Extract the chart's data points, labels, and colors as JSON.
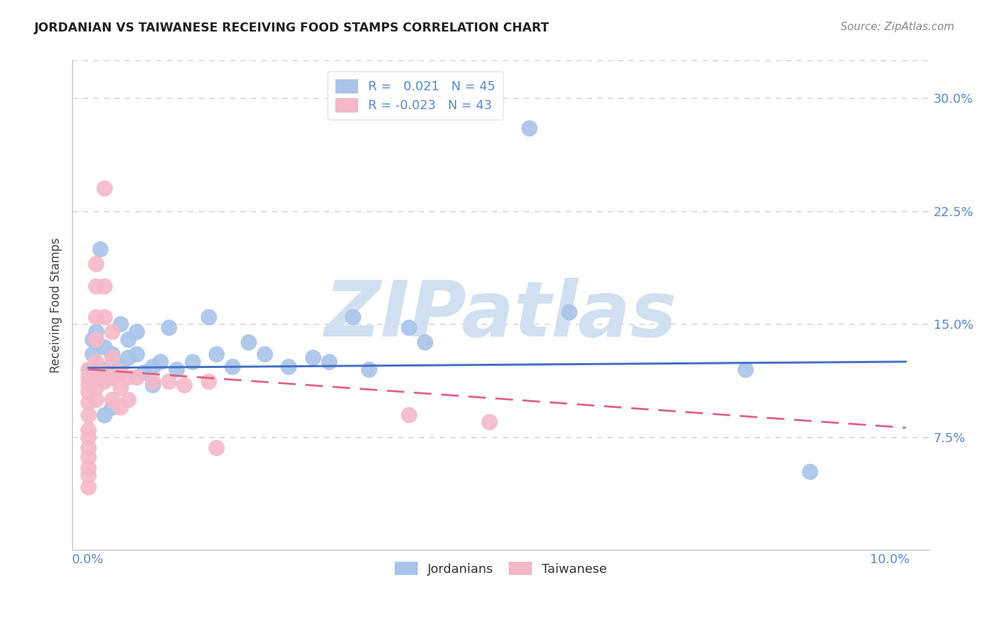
{
  "title": "JORDANIAN VS TAIWANESE RECEIVING FOOD STAMPS CORRELATION CHART",
  "source": "Source: ZipAtlas.com",
  "xlabel_blue": "Jordanians",
  "xlabel_pink": "Taiwanese",
  "ylabel": "Receiving Food Stamps",
  "xlim": [
    -0.002,
    0.105
  ],
  "ylim": [
    0.0,
    0.325
  ],
  "r_jordanian": 0.021,
  "n_jordanian": 45,
  "r_taiwanese": -0.023,
  "n_taiwanese": 43,
  "blue_color": "#a8c4e8",
  "pink_color": "#f5b8c8",
  "line_blue": "#4472c4",
  "line_pink": "#e06080",
  "watermark_color": "#d0e0f0",
  "title_color": "#222222",
  "axis_color": "#5588cc",
  "grid_color": "#cccccc",
  "y_ticks": [
    0.075,
    0.15,
    0.225,
    0.3
  ],
  "y_tick_labels": [
    "7.5%",
    "15.0%",
    "22.5%",
    "30.0%"
  ],
  "jordanian_x": [
    0.0003,
    0.0003,
    0.0005,
    0.0005,
    0.0008,
    0.001,
    0.001,
    0.001,
    0.0015,
    0.002,
    0.002,
    0.002,
    0.0025,
    0.003,
    0.003,
    0.003,
    0.004,
    0.004,
    0.005,
    0.005,
    0.006,
    0.006,
    0.007,
    0.008,
    0.008,
    0.009,
    0.01,
    0.011,
    0.013,
    0.015,
    0.016,
    0.018,
    0.02,
    0.022,
    0.025,
    0.028,
    0.03,
    0.033,
    0.035,
    0.04,
    0.042,
    0.055,
    0.06,
    0.082,
    0.09
  ],
  "jordanian_y": [
    0.12,
    0.113,
    0.14,
    0.13,
    0.115,
    0.145,
    0.138,
    0.12,
    0.2,
    0.135,
    0.12,
    0.09,
    0.115,
    0.13,
    0.118,
    0.095,
    0.15,
    0.123,
    0.14,
    0.128,
    0.145,
    0.13,
    0.118,
    0.122,
    0.11,
    0.125,
    0.148,
    0.12,
    0.125,
    0.155,
    0.13,
    0.122,
    0.138,
    0.13,
    0.122,
    0.128,
    0.125,
    0.155,
    0.12,
    0.148,
    0.138,
    0.28,
    0.158,
    0.12,
    0.052
  ],
  "taiwanese_x": [
    0.0,
    0.0,
    0.0,
    0.0,
    0.0,
    0.0,
    0.0,
    0.0,
    0.0,
    0.0,
    0.0,
    0.0,
    0.0,
    0.001,
    0.001,
    0.001,
    0.001,
    0.001,
    0.001,
    0.001,
    0.001,
    0.002,
    0.002,
    0.002,
    0.002,
    0.002,
    0.003,
    0.003,
    0.003,
    0.003,
    0.004,
    0.004,
    0.004,
    0.005,
    0.005,
    0.006,
    0.008,
    0.01,
    0.012,
    0.015,
    0.016,
    0.04,
    0.05
  ],
  "taiwanese_y": [
    0.12,
    0.115,
    0.11,
    0.105,
    0.098,
    0.09,
    0.08,
    0.075,
    0.068,
    0.062,
    0.055,
    0.05,
    0.042,
    0.19,
    0.175,
    0.155,
    0.14,
    0.125,
    0.115,
    0.108,
    0.1,
    0.24,
    0.175,
    0.155,
    0.118,
    0.112,
    0.145,
    0.128,
    0.115,
    0.1,
    0.118,
    0.108,
    0.095,
    0.115,
    0.1,
    0.115,
    0.112,
    0.112,
    0.11,
    0.112,
    0.068,
    0.09,
    0.085
  ]
}
